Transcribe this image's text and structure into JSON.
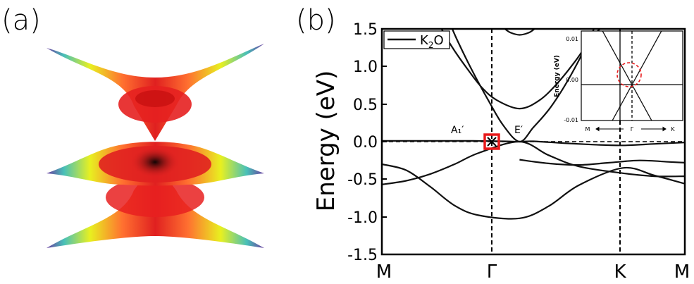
{
  "panel_a": {
    "label": "(a)",
    "colors": {
      "center": "#1a0a0a",
      "inner": "#e02020",
      "mid": "#ff5030",
      "warm": "#f0e020",
      "cool": "#4ab8c0",
      "edge": "#6a3ca0"
    }
  },
  "panel_b": {
    "label": "(b)"
  },
  "chart_data": [
    {
      "type": "line",
      "title": "",
      "ylabel": "Energy (eV)",
      "xlabel": "",
      "ylim": [
        -1.5,
        1.5
      ],
      "yticks": [
        "1.5",
        "1.0",
        "0.5",
        "0.0",
        "-0.5",
        "-1.0",
        "-1.5"
      ],
      "kpath": [
        "M",
        "Γ",
        "K",
        "M"
      ],
      "kpos": [
        0,
        0.4545,
        0.7956,
        1
      ],
      "legend": {
        "label": "K",
        "subscript": "2",
        "suffix": "O",
        "position": "top-left"
      },
      "annotations": {
        "a1": "A₁′",
        "e": "E′"
      },
      "fermi_level": 0,
      "bands": [
        {
          "x": [
            0.227,
            0.25,
            0.3,
            0.35,
            0.4,
            0.4545,
            0.5,
            0.55,
            0.6,
            0.65,
            0.7,
            0.71
          ],
          "y": [
            1.55,
            1.34,
            0.93,
            0.56,
            0.22,
            0.0,
            0.19,
            0.42,
            0.72,
            1.08,
            1.5,
            1.58
          ]
        },
        {
          "x": [
            0.19,
            0.23,
            0.28,
            0.33,
            0.38,
            0.4545,
            0.52,
            0.58,
            0.64,
            0.7,
            0.745
          ],
          "y": [
            1.55,
            1.27,
            0.98,
            0.72,
            0.55,
            0.44,
            0.55,
            0.78,
            1.08,
            1.42,
            1.58
          ]
        },
        {
          "x": [
            0.4,
            0.42,
            0.44,
            0.4545,
            0.47,
            0.49,
            0.51
          ],
          "y": [
            1.52,
            1.46,
            1.43,
            1.42,
            1.43,
            1.46,
            1.52
          ]
        },
        {
          "x": [
            0,
            0.1,
            0.2,
            0.3,
            0.4,
            0.4545,
            0.5,
            0.6,
            0.7,
            0.7956,
            0.9,
            1
          ],
          "y": [
            0.01,
            0.01,
            0.01,
            0.01,
            0.005,
            0.0,
            0.005,
            -0.02,
            -0.04,
            -0.05,
            -0.03,
            -0.01
          ]
        },
        {
          "x": [
            0,
            0.08,
            0.16,
            0.24,
            0.32,
            0.4545,
            0.55,
            0.65,
            0.7956,
            0.9,
            1
          ],
          "y": [
            -0.57,
            -0.52,
            -0.43,
            -0.3,
            -0.15,
            0.0,
            -0.18,
            -0.33,
            -0.42,
            -0.46,
            -0.46
          ]
        },
        {
          "x": [
            0,
            0.08,
            0.16,
            0.24,
            0.32,
            0.4545,
            0.55,
            0.65,
            0.7956,
            0.9,
            1
          ],
          "y": [
            -0.3,
            -0.38,
            -0.6,
            -0.85,
            -0.98,
            -1.02,
            -0.86,
            -0.58,
            -0.35,
            -0.45,
            -0.56
          ]
        },
        {
          "x": [
            0.4545,
            0.55,
            0.65,
            0.75,
            0.85,
            0.95,
            1
          ],
          "y": [
            -0.24,
            -0.29,
            -0.31,
            -0.28,
            -0.25,
            -0.27,
            -0.28
          ]
        }
      ]
    },
    {
      "type": "line",
      "title": "",
      "ylabel": "Energy (eV)",
      "ylim": [
        -0.01,
        0.015
      ],
      "yticks": [
        "0.01",
        "0.00",
        "-0.01"
      ],
      "kpath": [
        "M",
        "Γ",
        "K"
      ],
      "bands": [
        {
          "x": [
            0.2,
            0.5,
            0.8
          ],
          "y": [
            0.0155,
            0.0,
            -0.0155
          ]
        },
        {
          "x": [
            0.2,
            0.5,
            0.8
          ],
          "y": [
            -0.0155,
            0.0,
            0.0155
          ]
        },
        {
          "x": [
            0.0,
            1.0
          ],
          "y": [
            0.0,
            0.0
          ]
        }
      ]
    }
  ]
}
